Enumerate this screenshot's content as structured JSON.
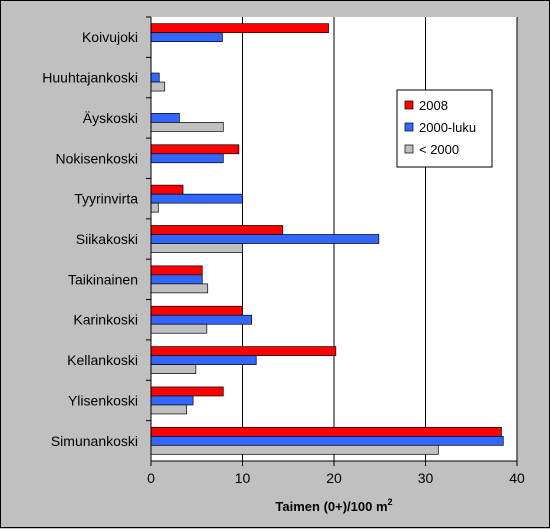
{
  "chart_data": {
    "type": "bar",
    "orientation": "horizontal",
    "categories": [
      "Koivujoki",
      "Huuhtajankoski",
      "Äyskoski",
      "Nokisenkoski",
      "Tyyrinvirta",
      "Siikakoski",
      "Taikinainen",
      "Karinkoski",
      "Kellankoski",
      "Ylisenkoski",
      "Simunankoski"
    ],
    "series": [
      {
        "name": "2008",
        "color": "#ff0000",
        "values": [
          19.4,
          null,
          null,
          9.6,
          3.5,
          14.4,
          5.6,
          10.0,
          20.2,
          7.9,
          38.3
        ]
      },
      {
        "name": "2000-luku",
        "color": "#3366ff",
        "values": [
          7.8,
          0.9,
          3.1,
          7.9,
          10.0,
          24.9,
          5.6,
          11.0,
          11.5,
          4.6,
          38.5
        ]
      },
      {
        "name": "< 2000",
        "color": "#c0c0c0",
        "values": [
          null,
          1.5,
          7.9,
          null,
          0.8,
          10.0,
          6.2,
          6.1,
          4.9,
          3.9,
          31.4
        ]
      }
    ],
    "xlabel": "Taimen (0+)/100 m",
    "xlabel_superscript": "2",
    "xlim": [
      0,
      40
    ],
    "xticks": [
      "0",
      "10",
      "20",
      "30",
      "40"
    ],
    "grid": "vertical major gridlines",
    "legend_position": "right"
  }
}
